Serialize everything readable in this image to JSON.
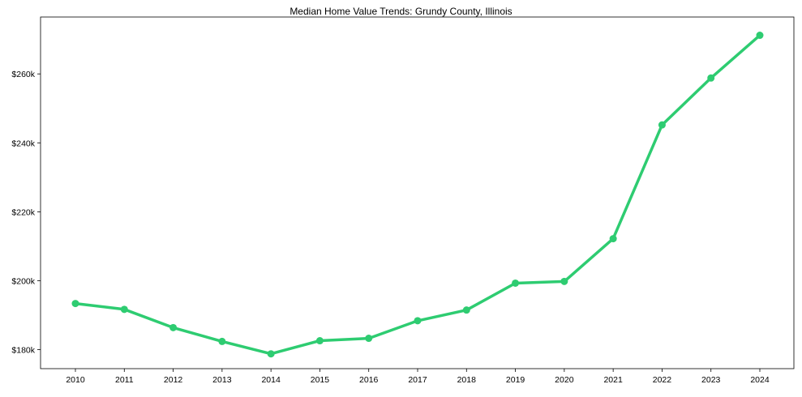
{
  "chart_data": {
    "type": "line",
    "title": "Median Home Value Trends: Grundy County, Illinois",
    "xlabel": "",
    "ylabel": "",
    "x": [
      2010,
      2011,
      2012,
      2013,
      2014,
      2015,
      2016,
      2017,
      2018,
      2019,
      2020,
      2021,
      2022,
      2023,
      2024
    ],
    "series": [
      {
        "name": "Median Home Value",
        "color": "#2ecc71",
        "marker": "circle",
        "values": [
          193400,
          191700,
          186400,
          182400,
          178800,
          182600,
          183300,
          188400,
          191500,
          199300,
          199800,
          212200,
          245200,
          258800,
          271200
        ]
      }
    ],
    "x_tick_labels": [
      "2010",
      "2011",
      "2012",
      "2013",
      "2014",
      "2015",
      "2016",
      "2017",
      "2018",
      "2019",
      "2020",
      "2021",
      "2022",
      "2023",
      "2024"
    ],
    "y_ticks": [
      180000,
      200000,
      220000,
      240000,
      260000
    ],
    "y_tick_labels": [
      "$180k",
      "$200k",
      "$220k",
      "$240k",
      "$260k"
    ],
    "ylim": [
      174500,
      276500
    ],
    "grid": false,
    "legend": null
  }
}
